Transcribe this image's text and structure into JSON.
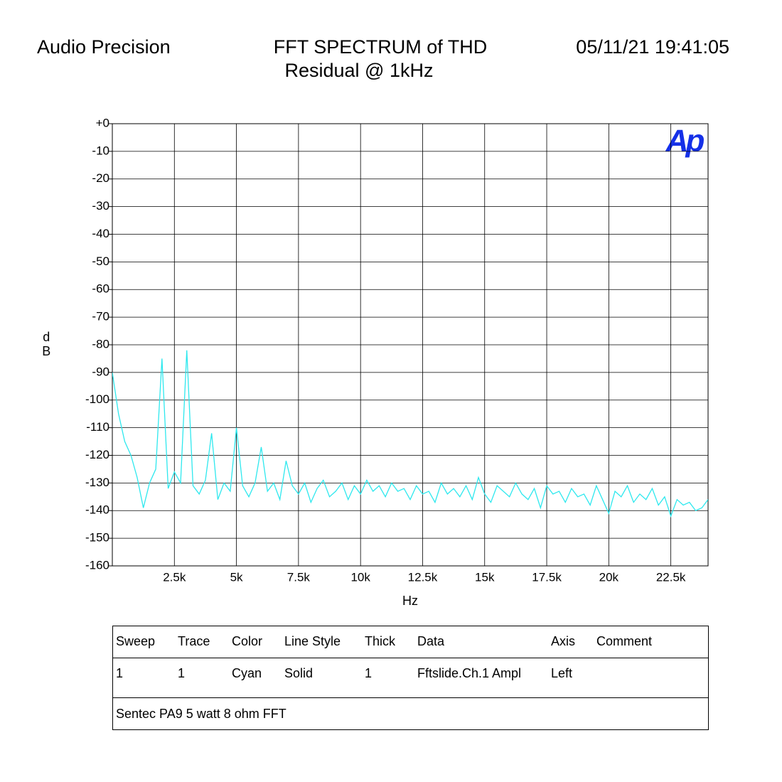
{
  "header": {
    "left": "Audio Precision",
    "right": "05/11/21 19:41:05",
    "logo": "Ap"
  },
  "chart_data": {
    "type": "line",
    "title": "FFT SPECTRUM of THD",
    "subtitle": "Residual @ 1kHz",
    "x_label": "Hz",
    "y_label": "dB",
    "xlim": [
      0,
      24000
    ],
    "xticks": [
      {
        "value": 2500,
        "label": "2.5k"
      },
      {
        "value": 5000,
        "label": "5k"
      },
      {
        "value": 7500,
        "label": "7.5k"
      },
      {
        "value": 10000,
        "label": "10k"
      },
      {
        "value": 12500,
        "label": "12.5k"
      },
      {
        "value": 15000,
        "label": "15k"
      },
      {
        "value": 17500,
        "label": "17.5k"
      },
      {
        "value": 20000,
        "label": "20k"
      },
      {
        "value": 22500,
        "label": "22.5k"
      }
    ],
    "ylim": [
      -160,
      0
    ],
    "yticks": [
      {
        "value": 0,
        "label": "+0"
      },
      -10,
      -20,
      -30,
      -40,
      -50,
      -60,
      -70,
      -80,
      -90,
      -100,
      -110,
      -120,
      -130,
      -140,
      -150,
      -160
    ],
    "grid": true,
    "x": [
      0,
      250,
      500,
      750,
      1000,
      1250,
      1500,
      1750,
      2000,
      2250,
      2500,
      2750,
      3000,
      3250,
      3500,
      3750,
      4000,
      4250,
      4500,
      4750,
      5000,
      5250,
      5500,
      5750,
      6000,
      6250,
      6500,
      6750,
      7000,
      7250,
      7500,
      7750,
      8000,
      8250,
      8500,
      8750,
      9000,
      9250,
      9500,
      9750,
      10000,
      10250,
      10500,
      10750,
      11000,
      11250,
      11500,
      11750,
      12000,
      12250,
      12500,
      12750,
      13000,
      13250,
      13500,
      13750,
      14000,
      14250,
      14500,
      14750,
      15000,
      15250,
      15500,
      15750,
      16000,
      16250,
      16500,
      16750,
      17000,
      17250,
      17500,
      17750,
      18000,
      18250,
      18500,
      18750,
      19000,
      19250,
      19500,
      19750,
      20000,
      20250,
      20500,
      20750,
      21000,
      21250,
      21500,
      21750,
      22000,
      22250,
      22500,
      22750,
      23000,
      23250,
      23500,
      23750,
      24000
    ],
    "series": [
      {
        "color": "#2ee8ee",
        "values": [
          -90,
          -105,
          -115,
          -120,
          -128,
          -139,
          -130,
          -125,
          -85,
          -132,
          -126,
          -130,
          -82,
          -131,
          -134,
          -129,
          -112,
          -136,
          -130,
          -133,
          -110,
          -131,
          -135,
          -130,
          -117,
          -133,
          -130,
          -136,
          -122,
          -131,
          -134,
          -130,
          -137,
          -132,
          -129,
          -135,
          -133,
          -130,
          -136,
          -131,
          -134,
          -129,
          -133,
          -131,
          -135,
          -130,
          -133,
          -132,
          -136,
          -131,
          -134,
          -133,
          -137,
          -130,
          -134,
          -132,
          -135,
          -131,
          -136,
          -128,
          -134,
          -137,
          -131,
          -133,
          -135,
          -130,
          -134,
          -136,
          -132,
          -139,
          -131,
          -134,
          -133,
          -137,
          -132,
          -135,
          -134,
          -138,
          -131,
          -136,
          -141,
          -133,
          -135,
          -131,
          -137,
          -134,
          -136,
          -132,
          -138,
          -135,
          -142,
          -136,
          -138,
          -137,
          -140,
          -139,
          -136
        ]
      }
    ]
  },
  "legend_table": {
    "columns": [
      "Sweep",
      "Trace",
      "Color",
      "Line Style",
      "Thick",
      "Data",
      "Axis",
      "Comment"
    ],
    "rows": [
      [
        "1",
        "1",
        "Cyan",
        "Solid",
        "1",
        "Fftslide.Ch.1 Ampl",
        "Left"
      ]
    ],
    "note": "Sentec PA9 5 watt 8 ohm FFT"
  }
}
